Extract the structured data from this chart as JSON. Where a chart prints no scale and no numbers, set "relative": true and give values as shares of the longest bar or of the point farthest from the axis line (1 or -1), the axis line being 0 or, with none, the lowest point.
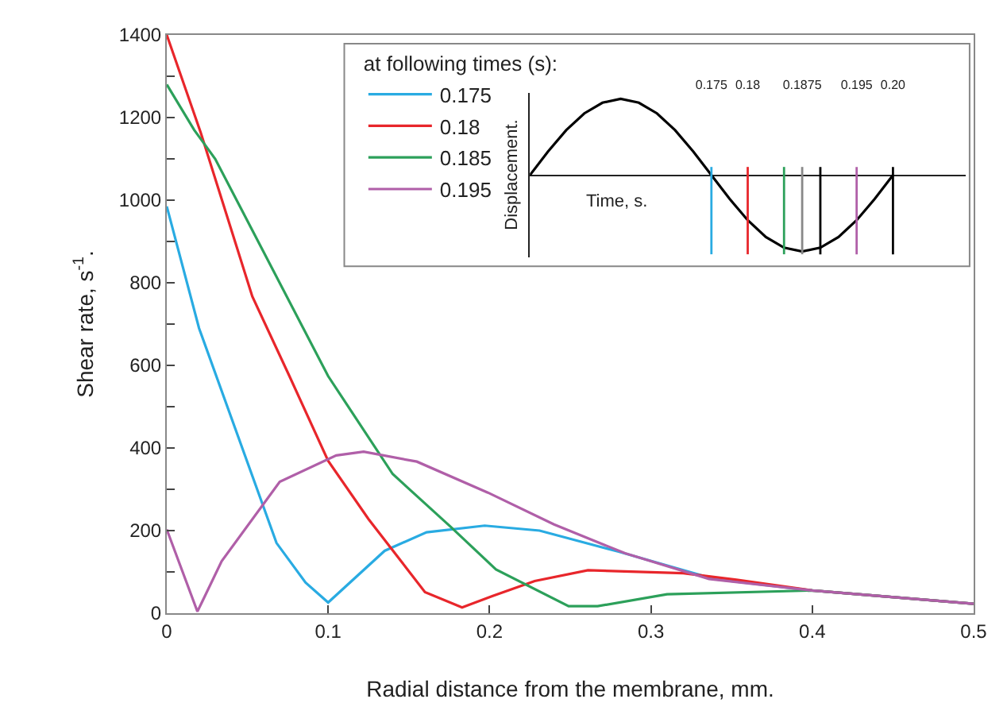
{
  "chart_data": [
    {
      "type": "line",
      "xlabel": "Radial distance from the membrane, mm.",
      "ylabel": "Shear rate, s$^{-1}$.",
      "legend_title": "at following times (s):",
      "legend": "top",
      "grid": false,
      "marker": "none",
      "line_style": "solid",
      "xlim": [
        0,
        0.5
      ],
      "xticks": [
        0,
        0.1,
        0.2,
        0.3,
        0.4,
        0.5
      ],
      "ylim": [
        0,
        1400
      ],
      "yticks": [
        0,
        {
          "value": 100,
          "label": null
        },
        200,
        {
          "value": 300,
          "label": null
        },
        400,
        {
          "value": 500,
          "label": null
        },
        600,
        {
          "value": 700,
          "label": null
        },
        800,
        {
          "value": 900,
          "label": null
        },
        1000,
        {
          "value": 1100,
          "label": null
        },
        1200,
        {
          "value": 1300,
          "label": null
        },
        1400
      ],
      "series": [
        {
          "name": "0.175",
          "color": "#29abe2",
          "x": [
            0,
            0.02,
            0.068,
            0.086,
            0.1,
            0.135,
            0.161,
            0.197,
            0.231,
            0.28,
            0.339,
            0.4,
            0.5
          ],
          "values": [
            985,
            690,
            170,
            74,
            26,
            151,
            196,
            212,
            200,
            149,
            83,
            55,
            23
          ]
        },
        {
          "name": "0.18",
          "color": "#e8262b",
          "x": [
            0,
            0.021,
            0.053,
            0.076,
            0.1,
            0.125,
            0.16,
            0.183,
            0.202,
            0.228,
            0.261,
            0.32,
            0.353,
            0.4,
            0.5
          ],
          "values": [
            1400,
            1164,
            767,
            574,
            369,
            228,
            51,
            14,
            42,
            78,
            104,
            97,
            81,
            55,
            23
          ]
        },
        {
          "name": "0.185",
          "color": "#2ca05a",
          "x": [
            0,
            0.017,
            0.03,
            0.1,
            0.14,
            0.176,
            0.204,
            0.249,
            0.267,
            0.31,
            0.4,
            0.5
          ],
          "values": [
            1280,
            1170,
            1100,
            574,
            337,
            209,
            106,
            17,
            17,
            46,
            55,
            23
          ]
        },
        {
          "name": "0.195",
          "color": "#b05fa8",
          "x": [
            0,
            0.019,
            0.034,
            0.07,
            0.105,
            0.122,
            0.155,
            0.199,
            0.24,
            0.284,
            0.336,
            0.4,
            0.5
          ],
          "values": [
            203,
            4,
            126,
            318,
            382,
            391,
            367,
            292,
            215,
            145,
            83,
            55,
            23
          ]
        }
      ]
    },
    {
      "type": "line",
      "relative": true,
      "xlabel": "Time, s.",
      "ylabel": "Displacement.",
      "xlim": [
        0.15,
        0.21
      ],
      "tick_labels": "x",
      "grid": false,
      "xticks": [
        {
          "value": 0.175,
          "label": "0.175"
        },
        {
          "value": 0.18,
          "label": "0.18"
        },
        {
          "value": 0.1875,
          "label": "0.1875"
        },
        {
          "value": 0.195,
          "label": "0.195"
        },
        {
          "value": 0.2,
          "label": "0.20"
        }
      ],
      "series": [
        {
          "color": "#000000",
          "x": [
            0.15,
            0.1525,
            0.155,
            0.1575,
            0.16,
            0.1625,
            0.165,
            0.1675,
            0.17,
            0.1725,
            0.175,
            0.1775,
            0.18,
            0.1825,
            0.185,
            0.1875,
            0.19,
            0.1925,
            0.195,
            0.1975,
            0.2
          ],
          "values": [
            0,
            0.31,
            0.59,
            0.81,
            0.95,
            1,
            0.95,
            0.81,
            0.59,
            0.31,
            0,
            -0.31,
            -0.59,
            -0.81,
            -0.95,
            -1,
            -0.95,
            -0.81,
            -0.59,
            -0.31,
            0
          ]
        }
      ],
      "ref_lines": [
        {
          "axis": "x",
          "value": 0.175,
          "color": "#29abe2"
        },
        {
          "axis": "x",
          "value": 0.18,
          "color": "#e8262b"
        },
        {
          "axis": "x",
          "value": 0.185,
          "color": "#2ca05a"
        },
        {
          "axis": "x",
          "value": 0.1875,
          "color": "#888888"
        },
        {
          "axis": "x",
          "value": 0.19,
          "color": "#000000"
        },
        {
          "axis": "x",
          "value": 0.195,
          "color": "#b05fa8"
        },
        {
          "axis": "x",
          "value": 0.2,
          "color": "#000000"
        }
      ]
    }
  ]
}
